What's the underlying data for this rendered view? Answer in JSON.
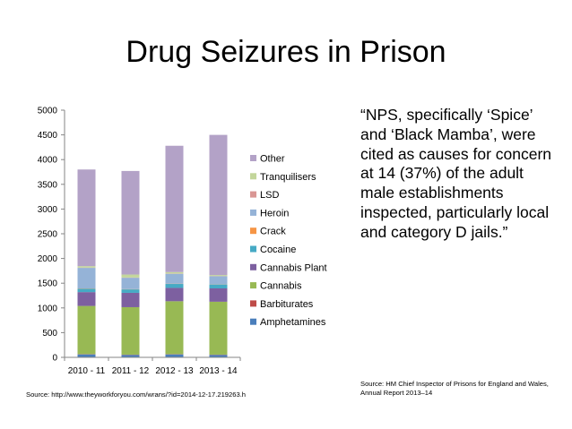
{
  "slide": {
    "title": "Drug Seizures in Prison",
    "quote": "“NPS, specifically ‘Spice’ and ‘Black Mamba’, were cited as causes for concern at 14 (37%) of the adult male establishments inspected, particularly local and category D jails.”",
    "source_left": "Source: http://www.theyworkforyou.com/wrans/?id=2014-12-17.219263.h",
    "source_right": "Source: HM Chief Inspector of Prisons for England and Wales, Annual Report 2013–14"
  },
  "chart_data": {
    "type": "bar",
    "stacked": true,
    "categories": [
      "2010 - 11",
      "2011 - 12",
      "2012 - 13",
      "2013 - 14"
    ],
    "ylim": [
      0,
      5000
    ],
    "yticks": [
      0,
      500,
      1000,
      1500,
      2000,
      2500,
      3000,
      3500,
      4000,
      4500,
      5000
    ],
    "grid": false,
    "legend_position": "right",
    "series": [
      {
        "name": "Amphetamines",
        "color": "#4a7ebb",
        "values": [
          60,
          50,
          60,
          50
        ]
      },
      {
        "name": "Barbiturates",
        "color": "#be4b48",
        "values": [
          5,
          5,
          5,
          5
        ]
      },
      {
        "name": "Cannabis",
        "color": "#98b954",
        "values": [
          975,
          960,
          1070,
          1070
        ]
      },
      {
        "name": "Cannabis Plant",
        "color": "#7d60a0",
        "values": [
          280,
          290,
          270,
          270
        ]
      },
      {
        "name": "Cocaine",
        "color": "#46aac5",
        "values": [
          70,
          70,
          80,
          80
        ]
      },
      {
        "name": "Crack",
        "color": "#f69545",
        "values": [
          5,
          5,
          5,
          5
        ]
      },
      {
        "name": "Heroin",
        "color": "#95b3d7",
        "values": [
          415,
          230,
          200,
          160
        ]
      },
      {
        "name": "LSD",
        "color": "#d99694",
        "values": [
          5,
          5,
          5,
          5
        ]
      },
      {
        "name": "Tranquilisers",
        "color": "#c3d69b",
        "values": [
          30,
          60,
          30,
          20
        ]
      },
      {
        "name": "Other",
        "color": "#b3a2c7",
        "values": [
          1955,
          2095,
          2555,
          2835
        ]
      }
    ]
  }
}
